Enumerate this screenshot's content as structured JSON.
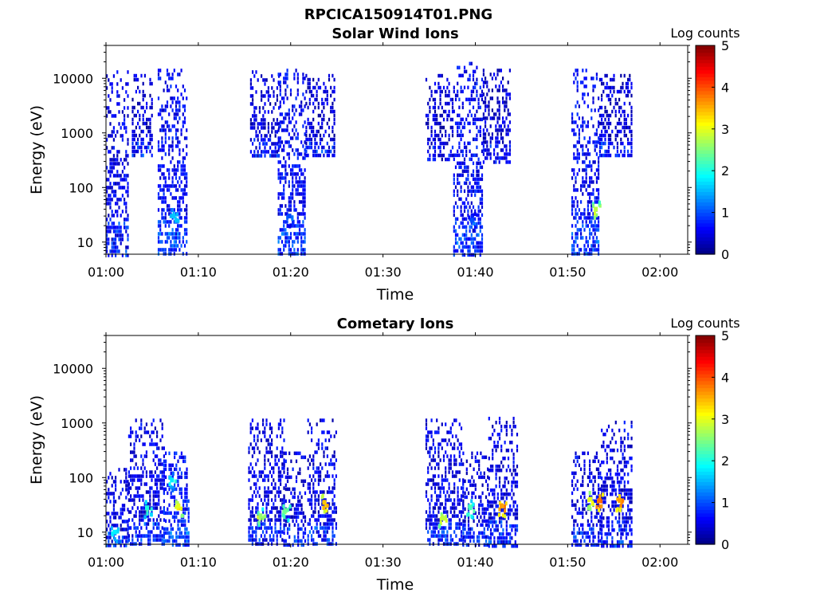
{
  "figure_title": "RPCICA150914T01.PNG",
  "chart_data": [
    {
      "type": "heatmap",
      "title": "Solar Wind Ions",
      "xlabel": "Time",
      "ylabel": "Energy (eV)",
      "xlim": [
        "01:00",
        "02:03"
      ],
      "ylim": [
        6,
        40000
      ],
      "yscale": "log",
      "x_ticks": [
        "01:00",
        "01:10",
        "01:20",
        "01:30",
        "01:40",
        "01:50",
        "02:00"
      ],
      "y_ticks": [
        "10",
        "100",
        "1000",
        "10000"
      ],
      "colorbar": {
        "label": "Log counts",
        "range": [
          0,
          5
        ],
        "ticks": [
          "0",
          "1",
          "2",
          "3",
          "4",
          "5"
        ],
        "colormap": "jet"
      },
      "clusters": [
        {
          "t_start": 0.0,
          "t_end": 2.4,
          "e_min": 6,
          "e_max": 14000,
          "level": 0.2
        },
        {
          "t_start": 2.8,
          "t_end": 5.0,
          "e_min": 400,
          "e_max": 12000,
          "level": 0.1
        },
        {
          "t_start": 5.6,
          "t_end": 8.8,
          "e_min": 6,
          "e_max": 15000,
          "level": 0.3
        },
        {
          "t_start": 15.6,
          "t_end": 18.8,
          "e_min": 400,
          "e_max": 14000,
          "level": 0.1
        },
        {
          "t_start": 18.6,
          "t_end": 21.6,
          "e_min": 6,
          "e_max": 15000,
          "level": 0.3
        },
        {
          "t_start": 21.6,
          "t_end": 24.8,
          "e_min": 400,
          "e_max": 12000,
          "level": 0.1
        },
        {
          "t_start": 34.6,
          "t_end": 37.6,
          "e_min": 300,
          "e_max": 12000,
          "level": 0.1
        },
        {
          "t_start": 37.6,
          "t_end": 40.8,
          "e_min": 6,
          "e_max": 20000,
          "level": 0.3
        },
        {
          "t_start": 40.8,
          "t_end": 43.8,
          "e_min": 300,
          "e_max": 15000,
          "level": 0.1
        },
        {
          "t_start": 50.4,
          "t_end": 53.4,
          "e_min": 6,
          "e_max": 15000,
          "level": 0.3
        },
        {
          "t_start": 53.4,
          "t_end": 57.0,
          "e_min": 400,
          "e_max": 12000,
          "level": 0.1
        }
      ],
      "hotspots": [
        {
          "t": 7.3,
          "e": 30,
          "level": 1.6
        },
        {
          "t": 19.8,
          "e": 30,
          "level": 1.0
        },
        {
          "t": 39.6,
          "e": 25,
          "level": 1.0
        },
        {
          "t": 53.0,
          "e": 40,
          "level": 2.8
        }
      ]
    },
    {
      "type": "heatmap",
      "title": "Cometary Ions",
      "xlabel": "Time",
      "ylabel": "Energy (eV)",
      "xlim": [
        "01:00",
        "02:03"
      ],
      "ylim": [
        6,
        40000
      ],
      "yscale": "log",
      "x_ticks": [
        "01:00",
        "01:10",
        "01:20",
        "01:30",
        "01:40",
        "01:50",
        "02:00"
      ],
      "y_ticks": [
        "10",
        "100",
        "1000",
        "10000"
      ],
      "colorbar": {
        "label": "Log counts",
        "range": [
          0,
          5
        ],
        "ticks": [
          "0",
          "1",
          "2",
          "3",
          "4",
          "5"
        ],
        "colormap": "jet"
      },
      "clusters": [
        {
          "t_start": 0.0,
          "t_end": 2.4,
          "e_min": 6,
          "e_max": 150,
          "level": 0.2
        },
        {
          "t_start": 2.4,
          "t_end": 6.2,
          "e_min": 6,
          "e_max": 1200,
          "level": 0.2
        },
        {
          "t_start": 6.2,
          "t_end": 9.0,
          "e_min": 6,
          "e_max": 300,
          "level": 0.4
        },
        {
          "t_start": 15.4,
          "t_end": 19.2,
          "e_min": 6,
          "e_max": 1200,
          "level": 0.2
        },
        {
          "t_start": 19.2,
          "t_end": 21.6,
          "e_min": 6,
          "e_max": 300,
          "level": 0.2
        },
        {
          "t_start": 21.8,
          "t_end": 25.0,
          "e_min": 6,
          "e_max": 1200,
          "level": 0.2
        },
        {
          "t_start": 34.6,
          "t_end": 38.6,
          "e_min": 6,
          "e_max": 1200,
          "level": 0.2
        },
        {
          "t_start": 38.6,
          "t_end": 41.4,
          "e_min": 6,
          "e_max": 300,
          "level": 0.2
        },
        {
          "t_start": 41.4,
          "t_end": 44.6,
          "e_min": 6,
          "e_max": 1300,
          "level": 0.2
        },
        {
          "t_start": 50.4,
          "t_end": 53.6,
          "e_min": 6,
          "e_max": 300,
          "level": 0.2
        },
        {
          "t_start": 53.6,
          "t_end": 57.0,
          "e_min": 6,
          "e_max": 1100,
          "level": 0.2
        }
      ],
      "hotspots": [
        {
          "t": 0.9,
          "e": 10,
          "level": 1.8
        },
        {
          "t": 4.4,
          "e": 28,
          "level": 2.0
        },
        {
          "t": 7.1,
          "e": 90,
          "level": 1.8
        },
        {
          "t": 7.8,
          "e": 30,
          "level": 3.0
        },
        {
          "t": 16.7,
          "e": 20,
          "level": 2.6
        },
        {
          "t": 19.4,
          "e": 25,
          "level": 2.4
        },
        {
          "t": 23.6,
          "e": 35,
          "level": 3.4
        },
        {
          "t": 36.4,
          "e": 18,
          "level": 2.8
        },
        {
          "t": 39.4,
          "e": 28,
          "level": 2.2
        },
        {
          "t": 42.8,
          "e": 30,
          "level": 3.6
        },
        {
          "t": 52.4,
          "e": 40,
          "level": 3.0
        },
        {
          "t": 53.4,
          "e": 38,
          "level": 3.8
        },
        {
          "t": 55.6,
          "e": 38,
          "level": 3.6
        }
      ]
    }
  ]
}
